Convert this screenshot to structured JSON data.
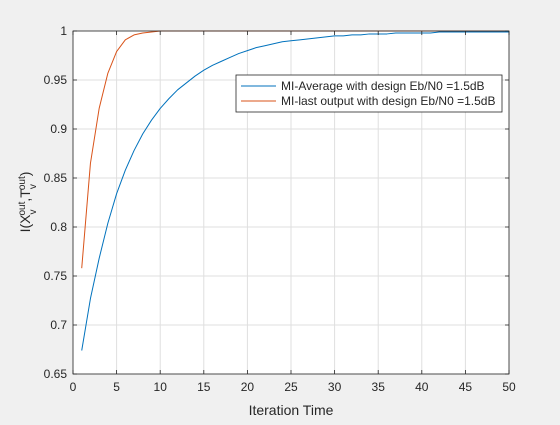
{
  "chart_data": {
    "type": "line",
    "xlabel": "Iteration Time",
    "ylabel": "I(X_v^out, T_v^out)",
    "ylabel_parts": {
      "base": "I(X",
      "sub1": "v",
      "sup1": "out",
      "mid": ",T",
      "sub2": "v",
      "sup2": "out",
      "end": ")"
    },
    "xlim": [
      0,
      50
    ],
    "ylim": [
      0.65,
      1.0
    ],
    "xticks": [
      0,
      5,
      10,
      15,
      20,
      25,
      30,
      35,
      40,
      45,
      50
    ],
    "yticks": [
      0.65,
      0.7,
      0.75,
      0.8,
      0.85,
      0.9,
      0.95,
      1
    ],
    "ytick_labels": [
      "0.65",
      "0.7",
      "0.75",
      "0.8",
      "0.85",
      "0.9",
      "0.95",
      "1"
    ],
    "grid": true,
    "legend_position": "top-right",
    "x": [
      1,
      2,
      3,
      4,
      5,
      6,
      7,
      8,
      9,
      10,
      11,
      12,
      13,
      14,
      15,
      16,
      17,
      18,
      19,
      20,
      21,
      22,
      23,
      24,
      25,
      26,
      27,
      28,
      29,
      30,
      31,
      32,
      33,
      34,
      35,
      36,
      37,
      38,
      39,
      40,
      41,
      42,
      43,
      44,
      45,
      46,
      47,
      48,
      49,
      50
    ],
    "series": [
      {
        "name": "MI-Average with design Eb/N0 =1.5dB",
        "color": "#0072BD",
        "values": [
          0.674,
          0.727,
          0.768,
          0.804,
          0.834,
          0.858,
          0.878,
          0.895,
          0.909,
          0.921,
          0.931,
          0.94,
          0.947,
          0.954,
          0.96,
          0.965,
          0.969,
          0.973,
          0.977,
          0.98,
          0.983,
          0.985,
          0.987,
          0.989,
          0.99,
          0.991,
          0.992,
          0.993,
          0.994,
          0.995,
          0.995,
          0.996,
          0.996,
          0.997,
          0.997,
          0.997,
          0.998,
          0.998,
          0.998,
          0.998,
          0.998,
          0.999,
          0.999,
          0.999,
          0.999,
          0.999,
          0.999,
          0.999,
          0.999,
          0.999
        ]
      },
      {
        "name": "MI-last output with design Eb/N0 =1.5dB",
        "color": "#D95319",
        "values": [
          0.758,
          0.865,
          0.921,
          0.957,
          0.979,
          0.991,
          0.996,
          0.998,
          0.999,
          1.0,
          1.0,
          1.0,
          1.0,
          1.0,
          1.0,
          1.0,
          1.0,
          1.0,
          1.0,
          1.0,
          1.0,
          1.0,
          1.0,
          1.0,
          1.0,
          1.0,
          1.0,
          1.0,
          1.0,
          1.0,
          1.0,
          1.0,
          1.0,
          1.0,
          1.0,
          1.0,
          1.0,
          1.0,
          1.0,
          1.0,
          1.0,
          1.0,
          1.0,
          1.0,
          1.0,
          1.0,
          1.0,
          1.0,
          1.0,
          1.0
        ]
      }
    ]
  }
}
